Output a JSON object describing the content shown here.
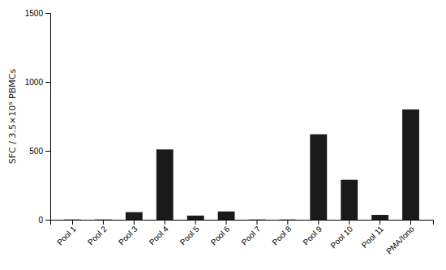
{
  "chart_data": {
    "type": "bar",
    "categories": [
      "Pool 1",
      "Pool 2",
      "Pool 3",
      "Pool 4",
      "Pool 5",
      "Pool 6",
      "Pool 7",
      "Pool 8",
      "Pool 9",
      "Pool 10",
      "Pool 11",
      "PMA/Iono"
    ],
    "values": [
      2,
      2,
      55,
      510,
      30,
      60,
      2,
      2,
      620,
      290,
      35,
      800
    ],
    "color": "#1a1a1a",
    "ylabel": "SFC / 3.5×10⁵ PBMCs",
    "ylim": [
      0,
      1500
    ],
    "yticks": [
      0,
      500,
      1000,
      1500
    ],
    "grid": false
  }
}
